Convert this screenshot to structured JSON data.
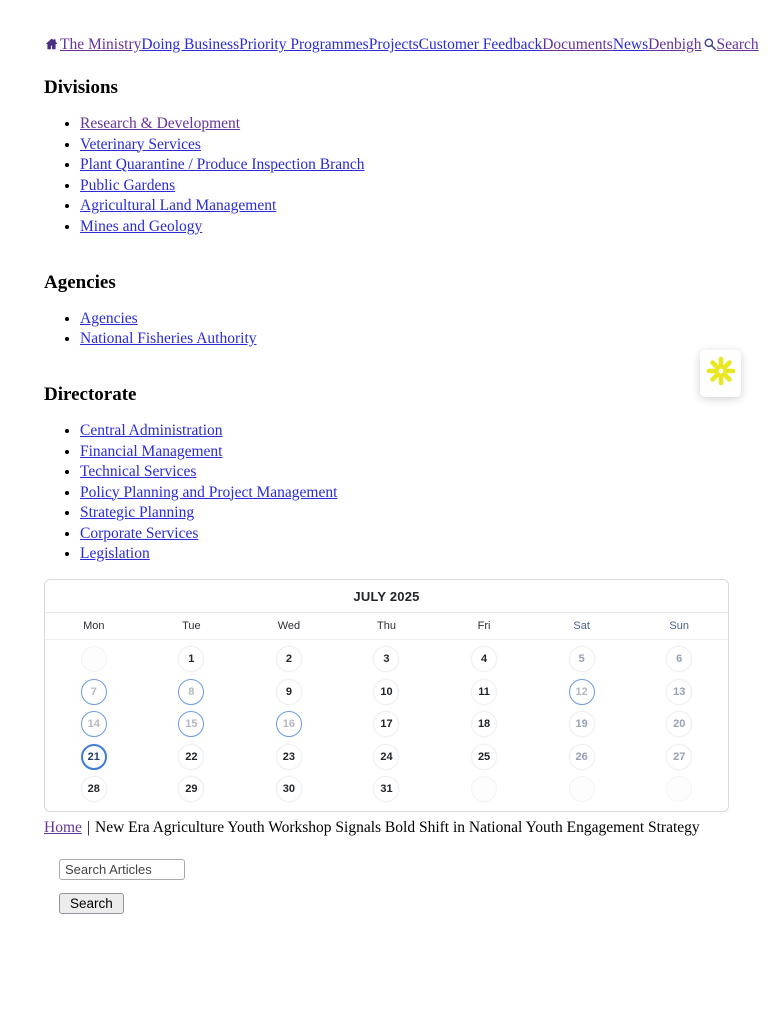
{
  "nav": {
    "links": [
      {
        "label": "The Ministry",
        "visited": true
      },
      {
        "label": "Doing Business",
        "visited": false
      },
      {
        "label": "Priority Programmes",
        "visited": false
      },
      {
        "label": "Projects",
        "visited": false
      },
      {
        "label": "Customer Feedback",
        "visited": false
      },
      {
        "label": "Documents",
        "visited": true
      },
      {
        "label": "News",
        "visited": false
      },
      {
        "label": "Denbigh",
        "visited": true
      }
    ],
    "search": {
      "label": "Search",
      "visited": true
    }
  },
  "sections": [
    {
      "title": "Divisions",
      "links": [
        {
          "label": "Research & Development",
          "visited": true
        },
        {
          "label": "Veterinary Services",
          "visited": false
        },
        {
          "label": "Plant Quarantine / Produce Inspection Branch",
          "visited": false
        },
        {
          "label": "Public Gardens",
          "visited": false
        },
        {
          "label": "Agricultural Land Management",
          "visited": false
        },
        {
          "label": "Mines and Geology",
          "visited": false
        }
      ]
    },
    {
      "title": "Agencies",
      "links": [
        {
          "label": "Agencies",
          "visited": false
        },
        {
          "label": "National Fisheries Authority",
          "visited": false
        }
      ]
    },
    {
      "title": "Directorate",
      "links": [
        {
          "label": "Central Administration",
          "visited": false
        },
        {
          "label": "Financial Management",
          "visited": false
        },
        {
          "label": "Technical Services",
          "visited": false
        },
        {
          "label": "Policy Planning and Project Management",
          "visited": false
        },
        {
          "label": "Strategic Planning",
          "visited": false
        },
        {
          "label": "Corporate Services",
          "visited": false
        },
        {
          "label": "Legislation",
          "visited": false
        }
      ]
    }
  ],
  "calendar": {
    "title": "JULY 2025",
    "weekdays": [
      "Mon",
      "Tue",
      "Wed",
      "Thu",
      "Fri",
      "Sat",
      "Sun"
    ],
    "weeks": [
      [
        null,
        1,
        2,
        3,
        4,
        5,
        6
      ],
      [
        7,
        8,
        9,
        10,
        11,
        12,
        13
      ],
      [
        14,
        15,
        16,
        17,
        18,
        19,
        20
      ],
      [
        21,
        22,
        23,
        24,
        25,
        26,
        27
      ],
      [
        28,
        29,
        30,
        31,
        null,
        null,
        null
      ]
    ],
    "event_days": [
      7,
      8,
      12,
      14,
      15,
      16
    ],
    "today": 21
  },
  "breadcrumb": {
    "home_label": "Home",
    "separator": "|",
    "article_title": "New Era Agriculture Youth Workshop Signals Bold Shift in National Youth Engagement Strategy"
  },
  "article_search": {
    "input_value": "Search Articles",
    "button_label": "Search"
  },
  "colors": {
    "link_blue": "#2b2bd5",
    "link_visited": "#663399",
    "calendar_event_ring": "#6f9de0",
    "calendar_today_ring": "#3e7cd6",
    "weekend_text": "#96a1b4",
    "widget_yellow": "#e9e71f"
  }
}
